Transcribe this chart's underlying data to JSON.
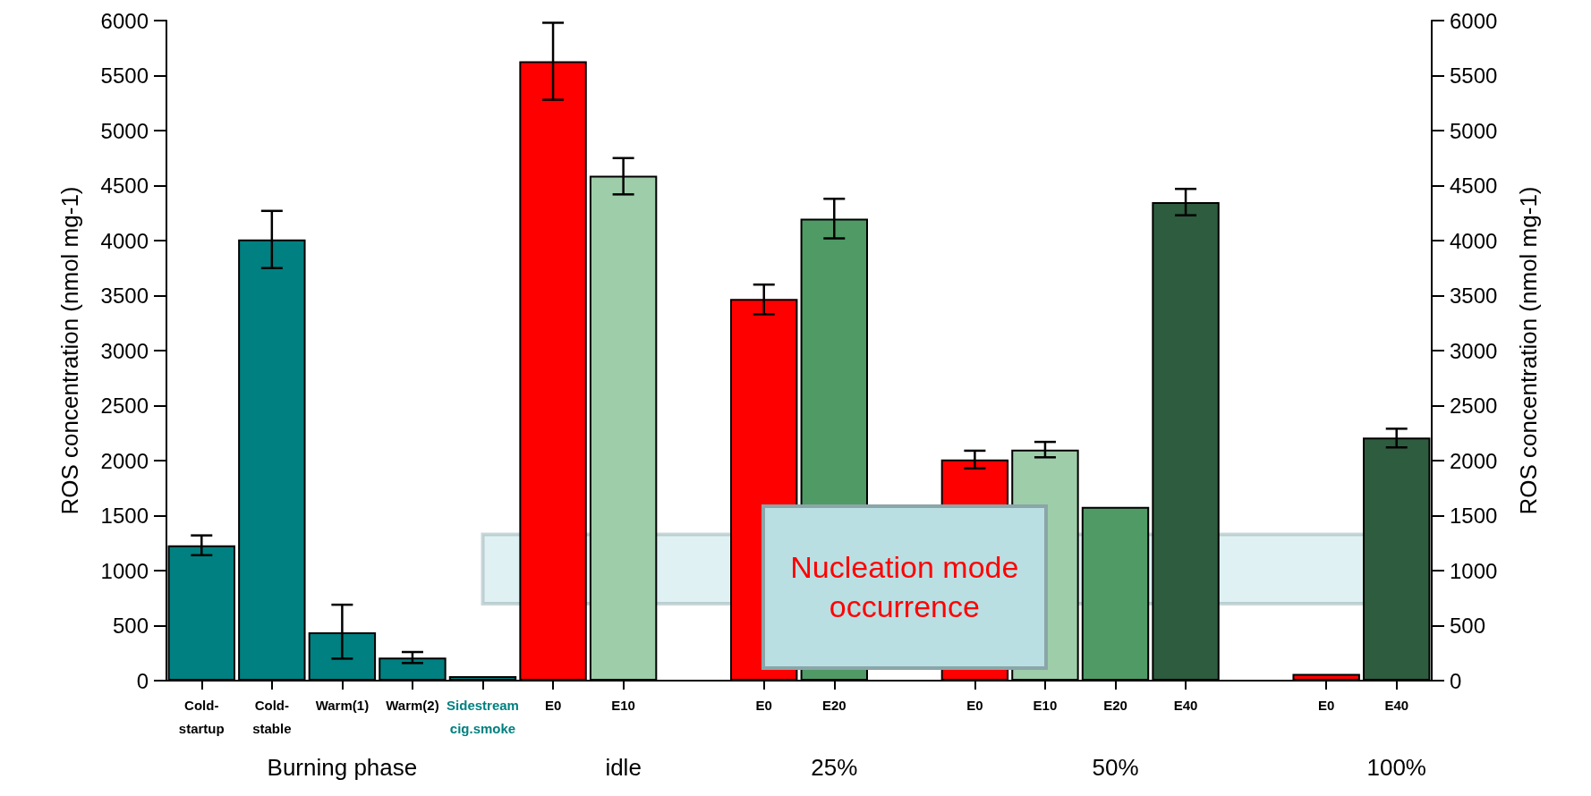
{
  "chart_data": {
    "type": "bar",
    "ylabel": "ROS concentration (nmol mg-1)",
    "y2label": "ROS concentration (nmol mg-1)",
    "categories": [
      "Cold-startup",
      "Cold-stable",
      "Warm(1)",
      "Warm(2)",
      "Sidestream cig.smoke",
      "E0",
      "E10",
      null,
      "E0",
      "E20",
      null,
      "E0",
      "E10",
      "E20",
      "E40",
      null,
      "E0",
      "E40"
    ],
    "values": [
      1230,
      4010,
      440,
      210,
      40,
      5630,
      4590,
      null,
      3470,
      4200,
      null,
      2010,
      2100,
      1580,
      4350,
      null,
      60,
      2210
    ],
    "errors": [
      90,
      260,
      [
        200,
        690
      ],
      50,
      null,
      350,
      [
        4420,
        4750
      ],
      null,
      [
        3330,
        3600
      ],
      180,
      null,
      80,
      70,
      null,
      120,
      null,
      null,
      [
        2120,
        2290
      ]
    ],
    "colors": [
      "#008080",
      "#008080",
      "#008080",
      "#008080",
      "#008080",
      "#ff0000",
      "#9ecda9",
      null,
      "#ff0000",
      "#509a66",
      null,
      "#ff0000",
      "#9ecda9",
      "#509a66",
      "#2d5c3e",
      null,
      "#ff0000",
      "#2d5c3e"
    ],
    "ylim": [
      0,
      6000
    ],
    "yticks": [
      0,
      500,
      1000,
      1500,
      2000,
      2500,
      3000,
      3500,
      4000,
      4500,
      5000,
      5500,
      6000
    ],
    "y2lim": [
      0,
      6000
    ],
    "y2ticks": [
      0,
      500,
      1000,
      1500,
      2000,
      2500,
      3000,
      3500,
      4000,
      4500,
      5000,
      5500,
      6000
    ],
    "bands": [
      {
        "axis": "y",
        "from": 700,
        "to": 1330,
        "label": "Nucleation mode occurrence",
        "color": "#b9dfe3"
      }
    ],
    "annotations": [
      "Burning phase",
      "idle",
      "25%",
      "50%",
      "100%"
    ],
    "grid": false
  }
}
